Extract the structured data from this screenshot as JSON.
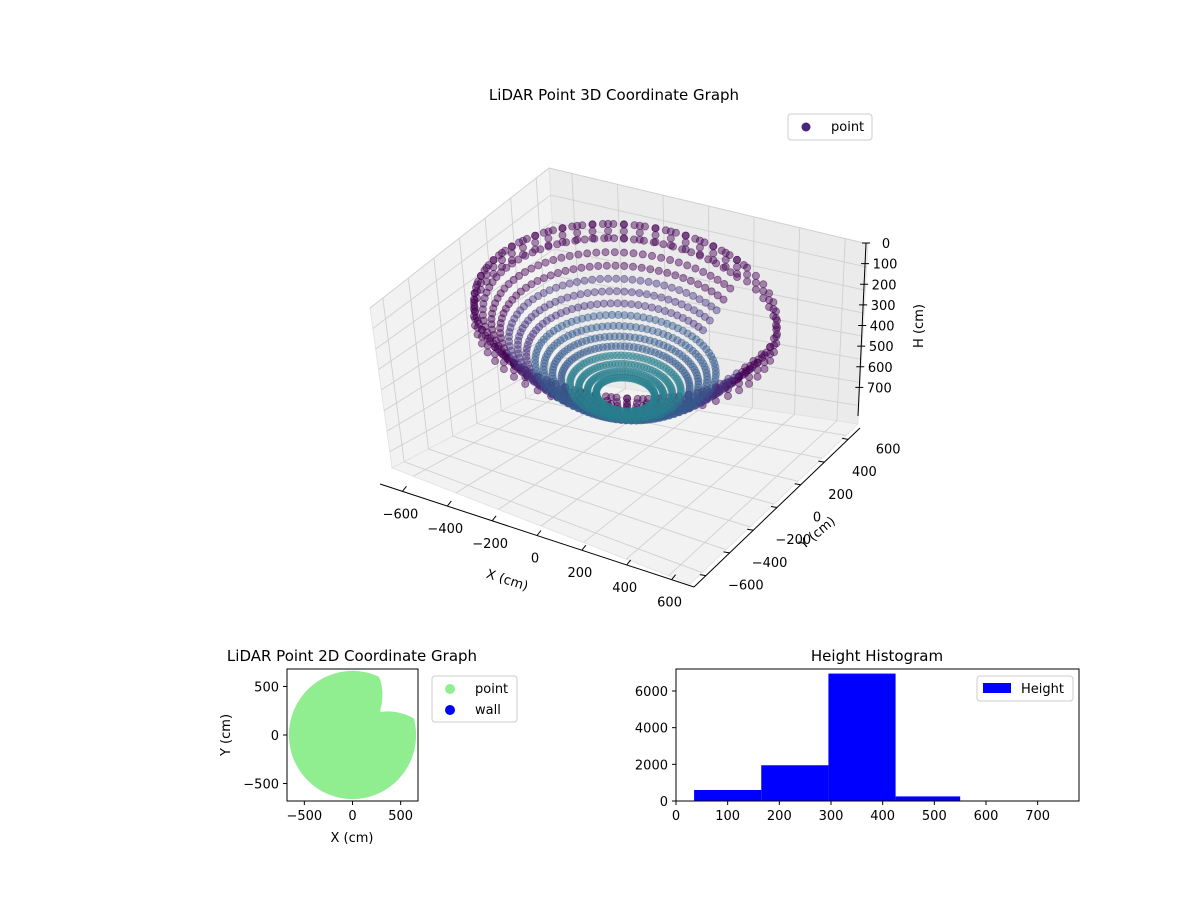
{
  "figure": {
    "background": "#ffffff"
  },
  "chart_data": [
    {
      "type": "scatter",
      "projection": "3d",
      "title": "LiDAR Point 3D Coordinate Graph",
      "xlabel": "X (cm)",
      "ylabel": "Y (cm)",
      "zlabel": "H (cm)",
      "xlim": [
        -700,
        700
      ],
      "ylim": [
        -700,
        700
      ],
      "zlim": [
        0,
        780
      ],
      "z_inverted": true,
      "xticks": [
        "−600",
        "−400",
        "−200",
        "0",
        "200",
        "400",
        "600"
      ],
      "yticks": [
        "−600",
        "−400",
        "−200",
        "0",
        "200",
        "400",
        "600"
      ],
      "zticks": [
        "0",
        "100",
        "200",
        "300",
        "400",
        "500",
        "600",
        "700"
      ],
      "grid": true,
      "colormap": [
        "#440154",
        "#46327e",
        "#365c8d",
        "#277f8e"
      ],
      "legend": {
        "position": "top-right",
        "entries": [
          {
            "name": "point",
            "color": "#46277a"
          }
        ]
      },
      "series": [
        {
          "name": "point",
          "shape": "bowl",
          "rim_radius": 620,
          "rim_height": 120,
          "floor_height": 480,
          "floor_radius": 120,
          "notch_angle_deg": 40,
          "notch_width_deg": 50
        }
      ]
    },
    {
      "type": "scatter",
      "title": "LiDAR Point 2D Coordinate Graph",
      "xlabel": "X (cm)",
      "ylabel": "Y (cm)",
      "xlim": [
        -680,
        680
      ],
      "ylim": [
        -680,
        680
      ],
      "xticks": [
        -500,
        0,
        500
      ],
      "yticks": [
        -500,
        0,
        500
      ],
      "grid": false,
      "legend": {
        "position": "outside-right",
        "entries": [
          {
            "name": "point",
            "color": "#90ee90"
          },
          {
            "name": "wall",
            "color": "#0000ff"
          }
        ]
      },
      "series": [
        {
          "name": "point",
          "color": "#90ee90",
          "shape": "disk",
          "radius": 660,
          "notch_angle_deg": 40,
          "notch_width_deg": 50
        },
        {
          "name": "wall",
          "color": "#0000ff",
          "values": []
        }
      ]
    },
    {
      "type": "bar",
      "title": "Height Histogram",
      "xlim": [
        0,
        780
      ],
      "ylim": [
        0,
        7200
      ],
      "xticks": [
        0,
        100,
        200,
        300,
        400,
        500,
        600,
        700
      ],
      "yticks": [
        0,
        2000,
        4000,
        6000
      ],
      "bins": [
        [
          35,
          165
        ],
        [
          165,
          295
        ],
        [
          295,
          425
        ],
        [
          425,
          550
        ],
        [
          550,
          680
        ],
        [
          680,
          780
        ]
      ],
      "values": [
        600,
        1950,
        6950,
        250,
        20,
        5
      ],
      "color": "#0000ff",
      "legend": {
        "position": "top-right",
        "entries": [
          {
            "name": "Height",
            "color": "#0000ff"
          }
        ]
      }
    }
  ]
}
